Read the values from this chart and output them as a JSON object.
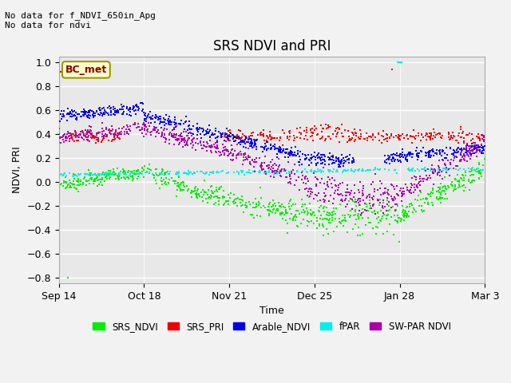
{
  "title": "SRS NDVI and PRI",
  "xlabel": "Time",
  "ylabel": "NDVI, PRI",
  "top_text": "No data for f_NDVI_650in_Apg\nNo data for ndvi",
  "legend_box_label": "BC_met",
  "xlim_days": [
    0,
    170
  ],
  "ylim": [
    -0.85,
    1.05
  ],
  "yticks": [
    -0.8,
    -0.6,
    -0.4,
    -0.2,
    0.0,
    0.2,
    0.4,
    0.6,
    0.8,
    1.0
  ],
  "xtick_labels": [
    "Sep 14",
    "Oct 18",
    "Nov 21",
    "Dec 25",
    "Jan 28",
    "Mar 3"
  ],
  "xtick_positions": [
    0,
    34,
    68,
    102,
    136,
    170
  ],
  "colors": {
    "SRS_NDVI": "#00EE00",
    "SRS_PRI": "#EE0000",
    "Arable_NDVI": "#0000EE",
    "fPAR": "#00EEEE",
    "SW_PAR_NDVI": "#AA00AA"
  },
  "bg_color": "#E8E8E8",
  "grid_color": "#FFFFFF",
  "fig_bg": "#F2F2F2"
}
